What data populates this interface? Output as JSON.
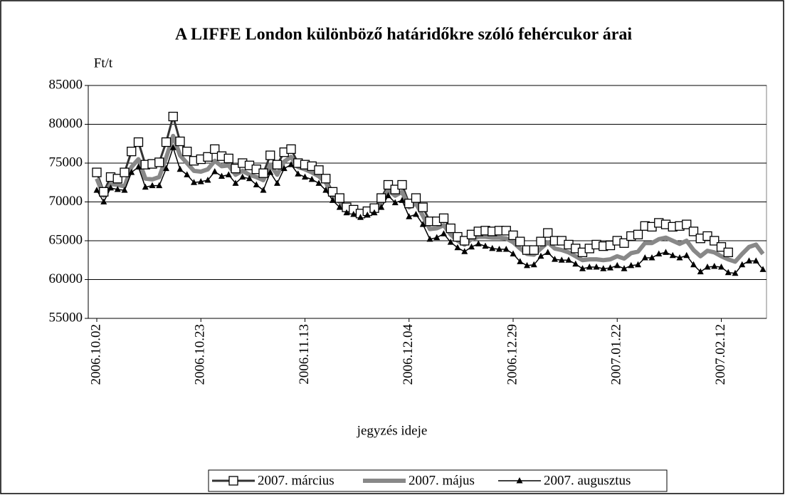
{
  "chart_data": {
    "type": "line",
    "title": "A LIFFE London különböző határidőkre szóló fehércukor árai",
    "y_label": "Ft/t",
    "x_label": "jegyzés ideje",
    "categories": [
      "2006.10.02",
      null,
      null,
      null,
      null,
      null,
      null,
      null,
      null,
      null,
      null,
      null,
      null,
      null,
      null,
      "2006.10.23",
      null,
      null,
      null,
      null,
      null,
      null,
      null,
      null,
      null,
      null,
      null,
      null,
      null,
      null,
      "2006.11.13",
      null,
      null,
      null,
      null,
      null,
      null,
      null,
      null,
      null,
      null,
      null,
      null,
      null,
      null,
      "2006.12.04",
      null,
      null,
      null,
      null,
      null,
      null,
      null,
      null,
      null,
      null,
      null,
      null,
      null,
      null,
      "2006.12.29",
      null,
      null,
      null,
      null,
      null,
      null,
      null,
      null,
      null,
      null,
      null,
      null,
      null,
      null,
      "2007.01.22",
      null,
      null,
      null,
      null,
      null,
      null,
      null,
      null,
      null,
      null,
      null,
      null,
      null,
      null,
      "2007.02.12",
      null,
      null,
      null,
      null,
      null,
      null
    ],
    "series": [
      {
        "name": "2007. március",
        "color": "#333333",
        "marker": "square",
        "values": [
          73800,
          71300,
          73200,
          73000,
          73800,
          76500,
          77700,
          74800,
          74900,
          75100,
          77700,
          81000,
          77800,
          76500,
          75300,
          75500,
          75800,
          76800,
          75900,
          75600,
          74300,
          75000,
          74700,
          74200,
          73700,
          76000,
          74800,
          76400,
          76800,
          75000,
          74800,
          74600,
          74100,
          73000,
          71300,
          70500,
          69300,
          69000,
          68500,
          68800,
          69200,
          70500,
          72200,
          71600,
          72200,
          69800,
          70500,
          69300,
          67500,
          67500,
          67900,
          66600,
          65500,
          65000,
          65800,
          66200,
          66300,
          66200,
          66300,
          66300,
          65700,
          64900,
          63800,
          63800,
          64900,
          66000,
          65000,
          65000,
          64500,
          64000,
          63500,
          64000,
          64500,
          64300,
          64400,
          65000,
          64700,
          65600,
          65800,
          66900,
          66800,
          67300,
          67100,
          66800,
          66900,
          67100,
          66200,
          65300,
          65600,
          65000,
          64200,
          63500,
          null,
          null,
          null,
          null,
          null
        ]
      },
      {
        "name": "2007. május",
        "color": "#888888",
        "marker": "none",
        "values": [
          73000,
          70800,
          72300,
          72200,
          72000,
          74500,
          75500,
          73000,
          72900,
          73200,
          75700,
          78500,
          76000,
          75000,
          74000,
          73900,
          74200,
          75300,
          74600,
          74700,
          73500,
          74000,
          73500,
          73200,
          72800,
          74800,
          73500,
          75200,
          75800,
          74500,
          74200,
          73800,
          73300,
          72500,
          70800,
          70000,
          68900,
          68700,
          68300,
          68600,
          69000,
          70000,
          71500,
          70800,
          71300,
          69300,
          69800,
          68200,
          66500,
          66600,
          67000,
          65800,
          65000,
          64500,
          65200,
          65500,
          65500,
          65400,
          65400,
          65300,
          64800,
          64000,
          63300,
          63200,
          64000,
          64800,
          64000,
          63800,
          63500,
          63000,
          62500,
          62600,
          62600,
          62500,
          62600,
          63000,
          62700,
          63400,
          63600,
          64700,
          64700,
          65200,
          65400,
          65000,
          64600,
          65000,
          63800,
          63000,
          63700,
          63500,
          63000,
          62600,
          62300,
          63300,
          64200,
          64500,
          63300
        ]
      },
      {
        "name": "2007. augusztus",
        "color": "#000000",
        "marker": "triangle",
        "values": [
          71500,
          70000,
          71800,
          71600,
          71500,
          73800,
          74500,
          71900,
          72100,
          72100,
          74300,
          77000,
          74200,
          73500,
          72500,
          72600,
          72800,
          73900,
          73300,
          73500,
          72400,
          73200,
          73000,
          72200,
          71500,
          73800,
          72400,
          74300,
          74800,
          73600,
          73200,
          72900,
          72400,
          71500,
          70200,
          69300,
          68600,
          68400,
          68000,
          68300,
          68600,
          69300,
          70800,
          69900,
          70200,
          68100,
          68400,
          67100,
          65200,
          65400,
          65900,
          64800,
          64100,
          63600,
          64200,
          64600,
          64300,
          64000,
          63900,
          63900,
          63300,
          62300,
          61800,
          61900,
          63000,
          63500,
          62600,
          62500,
          62500,
          62000,
          61400,
          61600,
          61600,
          61400,
          61500,
          61800,
          61400,
          61800,
          61900,
          62800,
          62800,
          63300,
          63500,
          63100,
          62800,
          63100,
          61900,
          61000,
          61600,
          61700,
          61600,
          60900,
          60800,
          61900,
          62400,
          62400,
          61300
        ]
      }
    ],
    "ylim": [
      55000,
      85000
    ],
    "yticks": [
      55000,
      60000,
      65000,
      70000,
      75000,
      80000,
      85000
    ],
    "grid": true,
    "legend": "bottom"
  }
}
